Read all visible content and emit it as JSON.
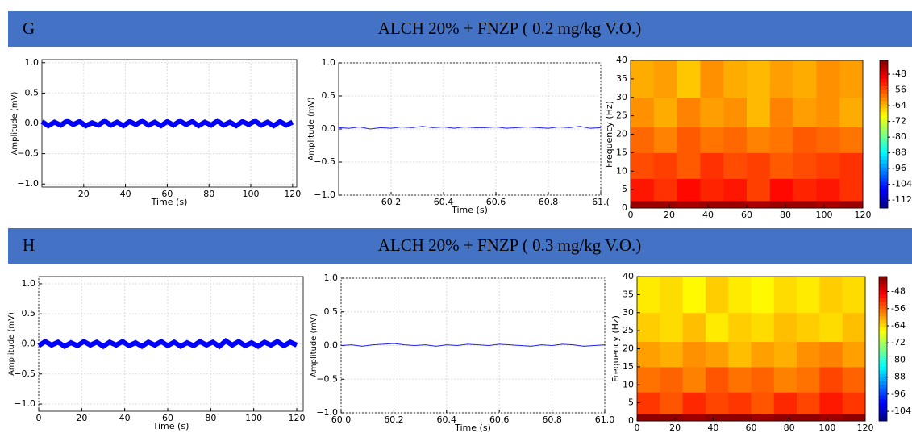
{
  "panels": [
    {
      "label": "G",
      "title": "ALCH 20%  + FNZP  ( 0.2 mg/kg V.O.)",
      "charts": [
        {
          "type": "line",
          "xlabel": "Time (s)",
          "ylabel": "Amplitude (mV)",
          "color": "#0000ff",
          "grid": true,
          "xlim": [
            0,
            122
          ],
          "ylim": [
            -1.05,
            1.05
          ],
          "xticks": [
            20,
            40,
            60,
            80,
            100,
            120
          ],
          "yticks": [
            {
              "value": -1,
              "label": "−1.0"
            },
            {
              "value": -0.5,
              "label": "−0.5"
            },
            {
              "value": 0,
              "label": "0.0"
            },
            {
              "value": 0.5,
              "label": "0.5"
            },
            {
              "value": 1,
              "label": "1.0"
            }
          ],
          "x": [
            0,
            3,
            6,
            9,
            12,
            15,
            18,
            21,
            24,
            27,
            30,
            33,
            36,
            39,
            42,
            45,
            48,
            51,
            54,
            57,
            60,
            63,
            66,
            69,
            72,
            75,
            78,
            81,
            84,
            87,
            90,
            93,
            96,
            99,
            102,
            105,
            108,
            111,
            114,
            117,
            120
          ],
          "values": [
            0.03,
            -0.04,
            0.02,
            -0.03,
            0.04,
            -0.02,
            0.03,
            -0.04,
            0.01,
            -0.03,
            0.04,
            -0.03,
            0.02,
            -0.04,
            0.03,
            -0.02,
            0.04,
            -0.03,
            0.02,
            -0.04,
            0.03,
            -0.03,
            0.04,
            -0.02,
            0.03,
            -0.04,
            0.02,
            -0.03,
            0.04,
            -0.03,
            0.02,
            -0.04,
            0.03,
            -0.02,
            0.04,
            -0.03,
            0.02,
            -0.04,
            0.03,
            -0.03,
            0.02
          ]
        },
        {
          "type": "line",
          "xlabel": "Time (s)",
          "ylabel": "Amplitude (mV)",
          "color": "#2222ee",
          "grid": true,
          "xlim": [
            60,
            61
          ],
          "ylim": [
            -1,
            1
          ],
          "xticks": [
            60.2,
            60.4,
            60.6,
            60.8,
            {
              "value": 61,
              "label": "61.("
            }
          ],
          "yticks": [
            {
              "value": -1,
              "label": "−1.0"
            },
            {
              "value": -0.5,
              "label": "−0.5"
            },
            {
              "value": 0,
              "label": "0.0"
            },
            {
              "value": 0.5,
              "label": "0.5"
            },
            {
              "value": 1,
              "label": "1.0"
            }
          ],
          "x": [
            60,
            60.04,
            60.08,
            60.12,
            60.16,
            60.2,
            60.24,
            60.28,
            60.32,
            60.36,
            60.4,
            60.44,
            60.48,
            60.52,
            60.56,
            60.6,
            60.64,
            60.68,
            60.72,
            60.76,
            60.8,
            60.84,
            60.88,
            60.92,
            60.96,
            61
          ],
          "values": [
            0.02,
            0.01,
            0.03,
            0.0,
            0.02,
            0.01,
            0.03,
            0.02,
            0.04,
            0.02,
            0.03,
            0.01,
            0.03,
            0.02,
            0.02,
            0.03,
            0.01,
            0.02,
            0.03,
            0.02,
            0.01,
            0.03,
            0.02,
            0.04,
            0.01,
            0.02
          ]
        },
        {
          "type": "heatmap",
          "ylabel": "Frequency (Hz)",
          "xlim": [
            0,
            120
          ],
          "ylim": [
            0,
            40
          ],
          "xticks": [
            0,
            20,
            40,
            60,
            80,
            100,
            120
          ],
          "yticks": [
            0,
            5,
            10,
            15,
            20,
            25,
            30,
            35,
            40
          ],
          "x_bins": [
            0,
            12,
            24,
            36,
            48,
            60,
            72,
            84,
            96,
            108,
            120
          ],
          "y_bins": [
            0,
            2,
            8,
            15,
            22,
            30,
            40
          ],
          "values": [
            [
              -43,
              -43,
              -44,
              -43,
              -43,
              -44,
              -43,
              -43,
              -44,
              -43
            ],
            [
              -52,
              -54,
              -51,
              -53,
              -52,
              -55,
              -51,
              -53,
              -52,
              -54
            ],
            [
              -56,
              -55,
              -57,
              -54,
              -56,
              -55,
              -57,
              -56,
              -55,
              -54
            ],
            [
              -58,
              -60,
              -57,
              -59,
              -58,
              -60,
              -59,
              -57,
              -58,
              -59
            ],
            [
              -61,
              -63,
              -60,
              -62,
              -61,
              -64,
              -60,
              -62,
              -61,
              -63
            ],
            [
              -63,
              -62,
              -65,
              -61,
              -63,
              -64,
              -62,
              -63,
              -61,
              -62
            ]
          ],
          "clim": [
            -116,
            -41
          ],
          "cbar_ticks": [
            -48,
            -56,
            -64,
            -72,
            -80,
            -88,
            -96,
            -104,
            -112
          ]
        }
      ]
    },
    {
      "label": "H",
      "title": "ALCH 20%  + FNZP  ( 0.3 mg/kg V.O.)",
      "charts": [
        {
          "type": "line",
          "xlabel": "Time (s)",
          "ylabel": "Amplitude (mV)",
          "color": "#0000ff",
          "grid": true,
          "xlim": [
            0,
            123
          ],
          "ylim": [
            -1.12,
            1.12
          ],
          "xticks": [
            0,
            20,
            40,
            60,
            80,
            100,
            120
          ],
          "yticks": [
            {
              "value": -1,
              "label": "−1.0"
            },
            {
              "value": -0.5,
              "label": "−0.5"
            },
            {
              "value": 0,
              "label": "0.0"
            },
            {
              "value": 0.5,
              "label": "0.5"
            },
            {
              "value": 1,
              "label": "1.0"
            }
          ],
          "x": [
            0,
            3,
            6,
            9,
            12,
            15,
            18,
            21,
            24,
            27,
            30,
            33,
            36,
            39,
            42,
            45,
            48,
            51,
            54,
            57,
            60,
            63,
            66,
            69,
            72,
            75,
            78,
            81,
            84,
            87,
            90,
            93,
            96,
            99,
            102,
            105,
            108,
            111,
            114,
            117,
            120
          ],
          "values": [
            -0.03,
            0.04,
            -0.02,
            0.03,
            -0.04,
            0.02,
            -0.03,
            0.04,
            -0.02,
            0.03,
            -0.04,
            0.03,
            -0.02,
            0.04,
            -0.03,
            0.02,
            -0.04,
            0.03,
            -0.02,
            0.04,
            -0.03,
            0.03,
            -0.04,
            0.02,
            -0.03,
            0.04,
            -0.02,
            0.03,
            -0.04,
            0.05,
            -0.02,
            0.04,
            -0.03,
            0.02,
            -0.04,
            0.03,
            -0.02,
            0.04,
            -0.03,
            0.03,
            -0.02
          ]
        },
        {
          "type": "line",
          "xlabel": "Time (s)",
          "ylabel": "Amplitude (mV)",
          "color": "#2222ee",
          "grid": true,
          "xlim": [
            60,
            61
          ],
          "ylim": [
            -1,
            1
          ],
          "xticks": [
            {
              "value": 60,
              "label": "60.0"
            },
            60.2,
            60.4,
            60.6,
            60.8,
            {
              "value": 61,
              "label": "61.0"
            }
          ],
          "yticks": [
            {
              "value": -1,
              "label": "−1.0"
            },
            {
              "value": -0.5,
              "label": "−0.5"
            },
            {
              "value": 0,
              "label": "0.0"
            },
            {
              "value": 0.5,
              "label": "0.5"
            },
            {
              "value": 1,
              "label": "1.0"
            }
          ],
          "x": [
            60,
            60.04,
            60.08,
            60.12,
            60.16,
            60.2,
            60.24,
            60.28,
            60.32,
            60.36,
            60.4,
            60.44,
            60.48,
            60.52,
            60.56,
            60.6,
            60.64,
            60.68,
            60.72,
            60.76,
            60.8,
            60.84,
            60.88,
            60.92,
            60.96,
            61
          ],
          "values": [
            0.0,
            0.01,
            -0.01,
            0.01,
            0.02,
            0.03,
            0.01,
            0.0,
            0.01,
            -0.01,
            0.01,
            0.0,
            0.02,
            0.01,
            0.0,
            0.02,
            0.01,
            0.0,
            -0.01,
            0.01,
            0.0,
            0.02,
            0.01,
            -0.01,
            0.0,
            0.01
          ]
        },
        {
          "type": "heatmap",
          "ylabel": "Frequency (Hz)",
          "xlim": [
            0,
            120
          ],
          "ylim": [
            0,
            40
          ],
          "xticks": [
            0,
            20,
            40,
            60,
            80,
            100,
            120
          ],
          "yticks": [
            0,
            5,
            10,
            15,
            20,
            25,
            30,
            35,
            40
          ],
          "x_bins": [
            0,
            12,
            24,
            36,
            48,
            60,
            72,
            84,
            96,
            108,
            120
          ],
          "y_bins": [
            0,
            2,
            8,
            15,
            22,
            30,
            40
          ],
          "values": [
            [
              -42,
              -42,
              -43,
              -42,
              -42,
              -43,
              -42,
              -42,
              -43,
              -42
            ],
            [
              -53,
              -55,
              -52,
              -54,
              -53,
              -55,
              -52,
              -54,
              -51,
              -53
            ],
            [
              -57,
              -56,
              -58,
              -55,
              -57,
              -56,
              -58,
              -57,
              -54,
              -56
            ],
            [
              -60,
              -61,
              -59,
              -60,
              -62,
              -60,
              -61,
              -59,
              -58,
              -60
            ],
            [
              -63,
              -64,
              -62,
              -65,
              -63,
              -64,
              -62,
              -63,
              -64,
              -62
            ],
            [
              -65,
              -64,
              -66,
              -63,
              -65,
              -66,
              -64,
              -65,
              -63,
              -64
            ]
          ],
          "clim": [
            -108.5,
            -41
          ],
          "cbar_ticks": [
            -48,
            -56,
            -64,
            -72,
            -80,
            -88,
            -96,
            -104
          ]
        }
      ]
    }
  ]
}
